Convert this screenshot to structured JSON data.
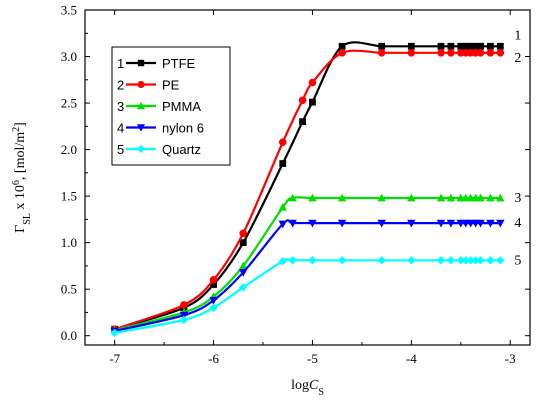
{
  "chart_data": {
    "type": "line",
    "xlabel": "logCS",
    "xlabel_main": "log",
    "xlabel_var": "C",
    "xlabel_sub": "S",
    "ylabel": "ΓSL x 10^6, [mol/m^2]",
    "ylabel_parts": {
      "gamma": "Γ",
      "sub": "SL",
      "mid": " x 10",
      "sup": "6",
      "unit": ", [mol/m",
      "unit_sup": "2",
      "close": "]"
    },
    "xlim": [
      -7.3,
      -2.8
    ],
    "ylim": [
      -0.1,
      3.5
    ],
    "xticks": [
      -7,
      -6,
      -5,
      -4,
      -3
    ],
    "xtick_labels": [
      "-7",
      "-6",
      "-5",
      "-4",
      "-3"
    ],
    "yticks": [
      0.0,
      0.5,
      1.0,
      1.5,
      2.0,
      2.5,
      3.0,
      3.5
    ],
    "ytick_labels": [
      "0.0",
      "0.5",
      "1.0",
      "1.5",
      "2.0",
      "2.5",
      "3.0",
      "3.5"
    ],
    "legend_position": "top-left",
    "series": [
      {
        "name": "PTFE",
        "legend_number": "1",
        "end_label": "1",
        "color": "#000000",
        "marker": "square",
        "x": [
          -7,
          -6.3,
          -6,
          -5.7,
          -5.3,
          -5.1,
          -5,
          -4.7,
          -4.3,
          -4,
          -3.7,
          -3.6,
          -3.5,
          -3.45,
          -3.4,
          -3.35,
          -3.3,
          -3.2,
          -3.1
        ],
        "y": [
          0.07,
          0.3,
          0.55,
          1.0,
          1.85,
          2.3,
          2.51,
          3.11,
          3.11,
          3.11,
          3.11,
          3.11,
          3.11,
          3.11,
          3.11,
          3.11,
          3.11,
          3.11,
          3.11
        ]
      },
      {
        "name": "PE",
        "legend_number": "2",
        "end_label": "2",
        "color": "#ff0000",
        "marker": "circle",
        "x": [
          -7,
          -6.3,
          -6,
          -5.7,
          -5.3,
          -5.1,
          -5,
          -4.7,
          -4.3,
          -4,
          -3.7,
          -3.6,
          -3.5,
          -3.45,
          -3.4,
          -3.35,
          -3.3,
          -3.2,
          -3.1
        ],
        "y": [
          0.07,
          0.33,
          0.6,
          1.1,
          2.08,
          2.53,
          2.72,
          3.04,
          3.04,
          3.04,
          3.04,
          3.04,
          3.04,
          3.04,
          3.04,
          3.04,
          3.04,
          3.04,
          3.04
        ]
      },
      {
        "name": "PMMA",
        "legend_number": "3",
        "end_label": "3",
        "color": "#00e000",
        "marker": "triangle-up",
        "x": [
          -7,
          -6.3,
          -6,
          -5.7,
          -5.3,
          -5.2,
          -5,
          -4.7,
          -4.3,
          -4,
          -3.7,
          -3.6,
          -3.5,
          -3.45,
          -3.4,
          -3.35,
          -3.3,
          -3.2,
          -3.1
        ],
        "y": [
          0.06,
          0.25,
          0.42,
          0.75,
          1.38,
          1.48,
          1.48,
          1.48,
          1.48,
          1.48,
          1.48,
          1.48,
          1.48,
          1.48,
          1.48,
          1.48,
          1.48,
          1.48,
          1.48
        ]
      },
      {
        "name": "nylon 6",
        "legend_number": "4",
        "end_label": "4",
        "color": "#0000ff",
        "marker": "triangle-down",
        "x": [
          -7,
          -6.3,
          -6,
          -5.7,
          -5.3,
          -5.2,
          -5,
          -4.7,
          -4.3,
          -4,
          -3.7,
          -3.6,
          -3.5,
          -3.45,
          -3.4,
          -3.35,
          -3.3,
          -3.2,
          -3.1
        ],
        "y": [
          0.05,
          0.22,
          0.38,
          0.68,
          1.2,
          1.21,
          1.21,
          1.21,
          1.21,
          1.21,
          1.21,
          1.21,
          1.21,
          1.21,
          1.21,
          1.21,
          1.21,
          1.21,
          1.21
        ]
      },
      {
        "name": "Quartz",
        "legend_number": "5",
        "end_label": "5",
        "color": "#00ffff",
        "marker": "diamond",
        "x": [
          -7,
          -6.3,
          -6,
          -5.7,
          -5.3,
          -5.2,
          -5,
          -4.7,
          -4.3,
          -4,
          -3.7,
          -3.6,
          -3.5,
          -3.45,
          -3.4,
          -3.35,
          -3.3,
          -3.2,
          -3.1
        ],
        "y": [
          0.03,
          0.17,
          0.3,
          0.52,
          0.8,
          0.81,
          0.81,
          0.81,
          0.81,
          0.81,
          0.81,
          0.81,
          0.81,
          0.81,
          0.81,
          0.81,
          0.81,
          0.81,
          0.81
        ]
      }
    ]
  }
}
